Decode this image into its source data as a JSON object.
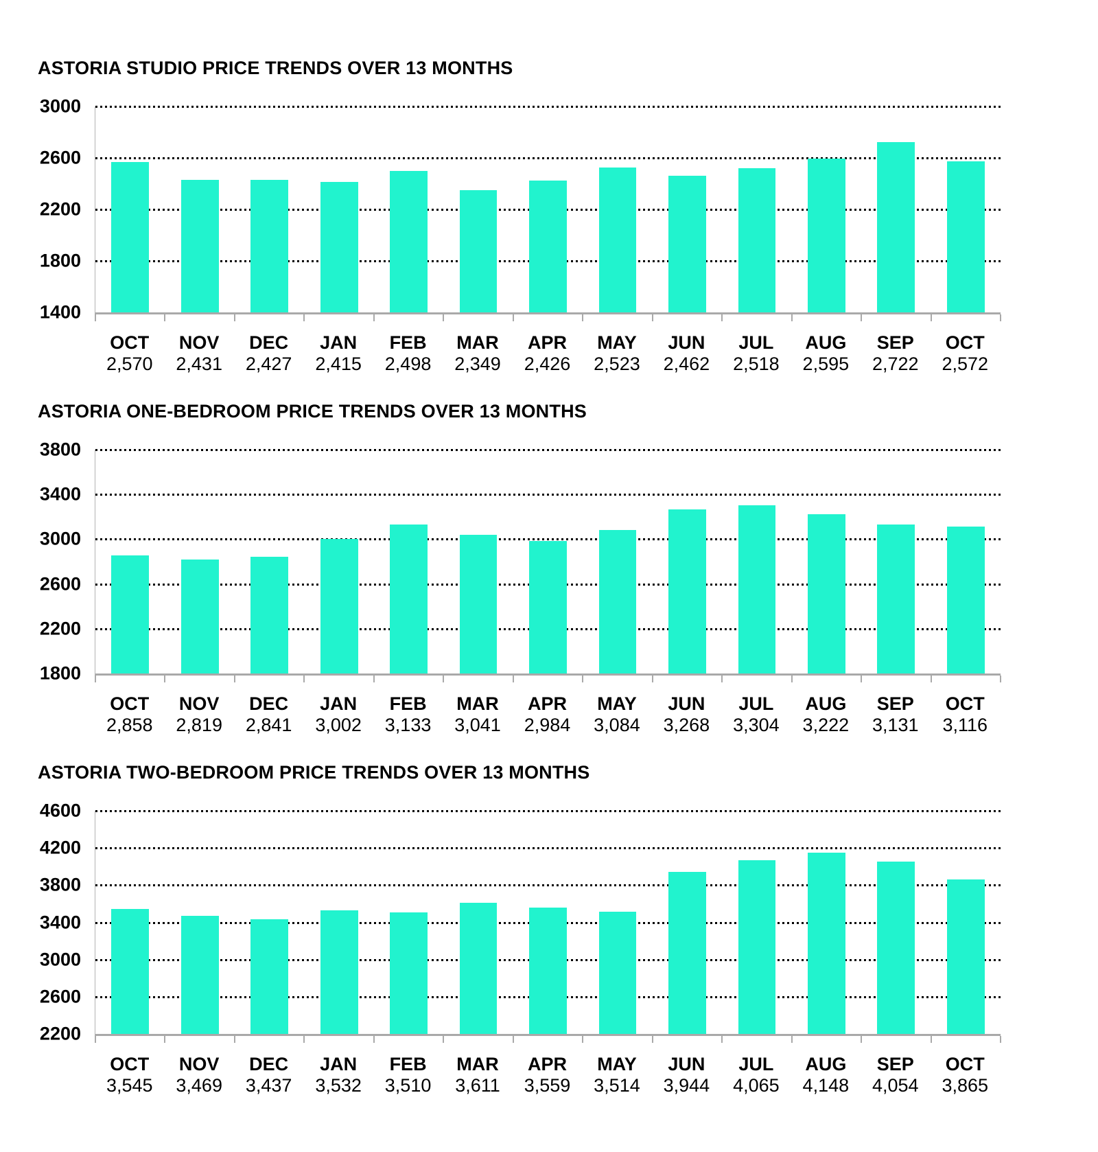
{
  "colors": {
    "bar": "#21F3CE",
    "grid": "#000000",
    "axis": "#A9A9A9",
    "text": "#000000",
    "background": "#FFFFFF"
  },
  "chart_data": [
    {
      "type": "bar",
      "title": "ASTORIA STUDIO PRICE TRENDS OVER 13 MONTHS",
      "categories": [
        "OCT",
        "NOV",
        "DEC",
        "JAN",
        "FEB",
        "MAR",
        "APR",
        "MAY",
        "JUN",
        "JUL",
        "AUG",
        "SEP",
        "OCT"
      ],
      "values": [
        2570,
        2431,
        2427,
        2415,
        2498,
        2349,
        2426,
        2523,
        2462,
        2518,
        2595,
        2722,
        2572
      ],
      "value_labels": [
        "2,570",
        "2,431",
        "2,427",
        "2,415",
        "2,498",
        "2,349",
        "2,426",
        "2,523",
        "2,462",
        "2,518",
        "2,595",
        "2,722",
        "2,572"
      ],
      "yticks": [
        3000,
        2600,
        2200,
        1800,
        1400
      ],
      "ylim": [
        1400,
        3000
      ],
      "xlabel": "",
      "ylabel": "",
      "grid": "horizontal-dotted",
      "legend": "none"
    },
    {
      "type": "bar",
      "title": "ASTORIA ONE-BEDROOM PRICE TRENDS OVER 13 MONTHS",
      "categories": [
        "OCT",
        "NOV",
        "DEC",
        "JAN",
        "FEB",
        "MAR",
        "APR",
        "MAY",
        "JUN",
        "JUL",
        "AUG",
        "SEP",
        "OCT"
      ],
      "values": [
        2858,
        2819,
        2841,
        3002,
        3133,
        3041,
        2984,
        3084,
        3268,
        3304,
        3222,
        3131,
        3116
      ],
      "value_labels": [
        "2,858",
        "2,819",
        "2,841",
        "3,002",
        "3,133",
        "3,041",
        "2,984",
        "3,084",
        "3,268",
        "3,304",
        "3,222",
        "3,131",
        "3,116"
      ],
      "yticks": [
        3800,
        3400,
        3000,
        2600,
        2200,
        1800
      ],
      "ylim": [
        1800,
        3800
      ],
      "xlabel": "",
      "ylabel": "",
      "grid": "horizontal-dotted",
      "legend": "none"
    },
    {
      "type": "bar",
      "title": "ASTORIA TWO-BEDROOM PRICE TRENDS OVER 13 MONTHS",
      "categories": [
        "OCT",
        "NOV",
        "DEC",
        "JAN",
        "FEB",
        "MAR",
        "APR",
        "MAY",
        "JUN",
        "JUL",
        "AUG",
        "SEP",
        "OCT"
      ],
      "values": [
        3545,
        3469,
        3437,
        3532,
        3510,
        3611,
        3559,
        3514,
        3944,
        4065,
        4148,
        4054,
        3865
      ],
      "value_labels": [
        "3,545",
        "3,469",
        "3,437",
        "3,532",
        "3,510",
        "3,611",
        "3,559",
        "3,514",
        "3,944",
        "4,065",
        "4,148",
        "4,054",
        "3,865"
      ],
      "yticks": [
        4600,
        4200,
        3800,
        3400,
        3000,
        2600,
        2200
      ],
      "ylim": [
        2200,
        4600
      ],
      "xlabel": "",
      "ylabel": "",
      "grid": "horizontal-dotted",
      "legend": "none"
    }
  ]
}
